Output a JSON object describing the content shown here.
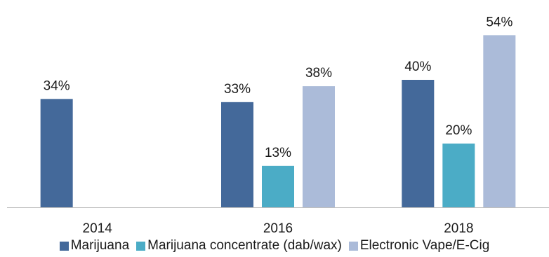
{
  "chart_data": {
    "type": "bar",
    "title": "",
    "xlabel": "",
    "ylabel": "",
    "categories": [
      "2014",
      "2016",
      "2018"
    ],
    "ylim": [
      0,
      60
    ],
    "grid": false,
    "legend_position": "bottom",
    "value_suffix": "%",
    "series": [
      {
        "name": "Marijuana",
        "color": "#44699a",
        "values": [
          34,
          33,
          40
        ]
      },
      {
        "name": "Marijuana concentrate (dab/wax)",
        "color": "#4bacc6",
        "values": [
          null,
          13,
          20
        ]
      },
      {
        "name": "Electronic Vape/E-Cig",
        "color": "#abbbd9",
        "values": [
          null,
          38,
          54
        ]
      }
    ]
  }
}
